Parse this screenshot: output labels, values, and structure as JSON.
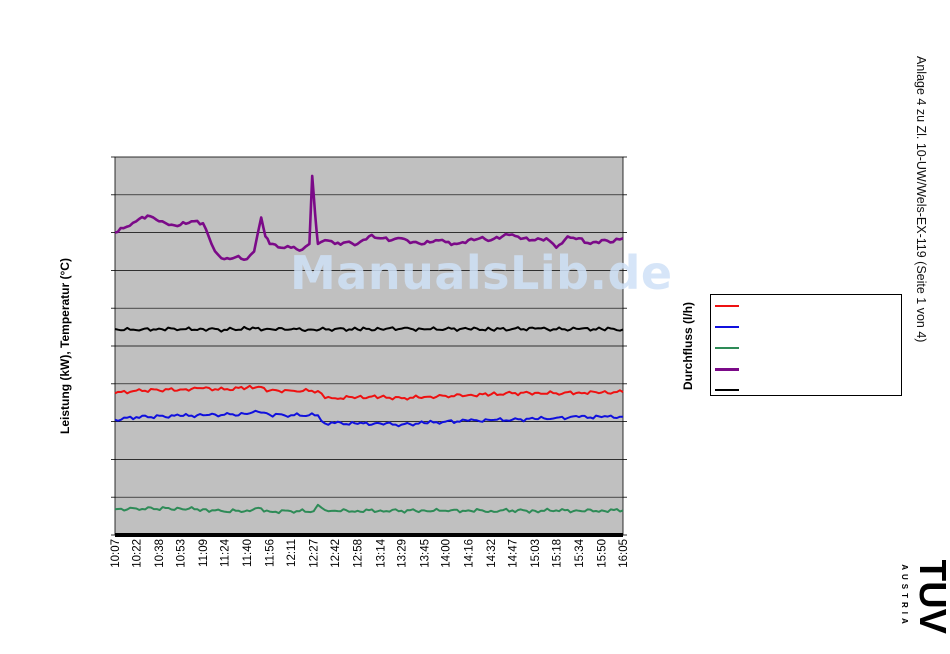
{
  "document": {
    "side_caption": "Anlage 4 zu Zl. 10-UW/Wels-EX-119 (Seite 1 von 4)",
    "watermark": "ManualsLib.de",
    "logo_text": "TÜV",
    "logo_subtext": "AUSTRIA"
  },
  "chart_data": {
    "type": "line",
    "title": "",
    "ylabel_left": "Leistung (kW), Temperatur (°C)",
    "ylabel_right": "Durchfluss (l/h)",
    "xlabel": "",
    "x_ticks": [
      "10:07",
      "10:22",
      "10:38",
      "10:53",
      "11:09",
      "11:24",
      "11:40",
      "11:56",
      "12:11",
      "12:27",
      "12:42",
      "12:58",
      "13:14",
      "13:29",
      "13:45",
      "14:00",
      "14:16",
      "14:32",
      "14:47",
      "15:03",
      "15:18",
      "15:34",
      "15:50",
      "16:05"
    ],
    "ylim": [
      0,
      10
    ],
    "grid": true,
    "y_tick_count": 10,
    "legend_placement": "right",
    "background": "#c0c0c0",
    "series": [
      {
        "color": "#ee1111",
        "x": [
          "10:07",
          "10:22",
          "10:53",
          "11:09",
          "11:24",
          "11:40",
          "11:48",
          "11:56",
          "12:11",
          "12:30",
          "12:35",
          "12:42",
          "12:58",
          "13:14",
          "13:29",
          "13:45",
          "14:00",
          "14:16",
          "14:32",
          "14:47",
          "15:03",
          "15:18",
          "15:34",
          "15:50",
          "16:05"
        ],
        "values": [
          3.75,
          3.82,
          3.85,
          3.88,
          3.85,
          3.9,
          3.92,
          3.82,
          3.82,
          3.81,
          3.62,
          3.62,
          3.65,
          3.65,
          3.62,
          3.65,
          3.68,
          3.7,
          3.72,
          3.75,
          3.76,
          3.75,
          3.77,
          3.77,
          3.78
        ]
      },
      {
        "color": "#1010dd",
        "x": [
          "10:07",
          "10:22",
          "10:53",
          "11:09",
          "11:24",
          "11:40",
          "11:48",
          "11:56",
          "12:11",
          "12:30",
          "12:35",
          "12:42",
          "12:58",
          "13:14",
          "13:29",
          "13:45",
          "14:00",
          "14:16",
          "14:32",
          "14:47",
          "15:03",
          "15:18",
          "15:34",
          "15:50",
          "16:05"
        ],
        "values": [
          3.05,
          3.12,
          3.15,
          3.17,
          3.18,
          3.2,
          3.26,
          3.18,
          3.17,
          3.17,
          2.95,
          2.96,
          2.94,
          2.95,
          2.92,
          2.96,
          3.0,
          3.02,
          3.04,
          3.05,
          3.07,
          3.1,
          3.12,
          3.12,
          3.13
        ]
      },
      {
        "color": "#2e8b57",
        "x": [
          "10:07",
          "10:22",
          "10:53",
          "11:09",
          "11:24",
          "11:40",
          "11:48",
          "11:56",
          "12:11",
          "12:27",
          "12:30",
          "12:35",
          "12:42",
          "12:58",
          "13:14",
          "13:29",
          "13:45",
          "14:00",
          "14:16",
          "14:32",
          "14:47",
          "15:03",
          "15:18",
          "15:34",
          "15:50",
          "16:05"
        ],
        "values": [
          0.68,
          0.7,
          0.7,
          0.68,
          0.62,
          0.65,
          0.72,
          0.62,
          0.63,
          0.63,
          0.8,
          0.66,
          0.64,
          0.64,
          0.65,
          0.64,
          0.65,
          0.64,
          0.65,
          0.64,
          0.65,
          0.64,
          0.65,
          0.64,
          0.65,
          0.65
        ]
      },
      {
        "color": "#7b0a88",
        "x": [
          "10:07",
          "10:15",
          "10:22",
          "10:30",
          "10:38",
          "10:45",
          "10:53",
          "11:01",
          "11:09",
          "11:15",
          "11:20",
          "11:24",
          "11:32",
          "11:40",
          "11:45",
          "11:50",
          "11:53",
          "11:56",
          "12:04",
          "12:11",
          "12:19",
          "12:24",
          "12:26",
          "12:28",
          "12:30",
          "12:35",
          "12:42",
          "12:50",
          "12:58",
          "13:06",
          "13:14",
          "13:22",
          "13:29",
          "13:37",
          "13:45",
          "13:53",
          "14:00",
          "14:08",
          "14:16",
          "14:24",
          "14:32",
          "14:40",
          "14:47",
          "14:55",
          "15:03",
          "15:11",
          "15:18",
          "15:26",
          "15:34",
          "15:42",
          "15:50",
          "15:58",
          "16:05"
        ],
        "values": [
          8.0,
          8.15,
          8.3,
          8.45,
          8.3,
          8.2,
          8.2,
          8.3,
          8.25,
          7.7,
          7.4,
          7.3,
          7.35,
          7.3,
          7.5,
          8.4,
          7.9,
          7.7,
          7.6,
          7.6,
          7.55,
          7.7,
          9.5,
          8.5,
          7.7,
          7.8,
          7.7,
          7.75,
          7.7,
          7.9,
          7.85,
          7.8,
          7.85,
          7.75,
          7.7,
          7.8,
          7.75,
          7.7,
          7.8,
          7.85,
          7.8,
          7.9,
          7.95,
          7.85,
          7.8,
          7.85,
          7.6,
          7.9,
          7.85,
          7.7,
          7.8,
          7.75,
          7.85
        ]
      },
      {
        "color": "#000000",
        "x": [
          "10:07",
          "10:22",
          "10:38",
          "10:53",
          "11:09",
          "11:24",
          "11:40",
          "11:56",
          "12:11",
          "12:27",
          "12:42",
          "12:58",
          "13:14",
          "13:29",
          "13:45",
          "14:00",
          "14:16",
          "14:32",
          "14:47",
          "15:03",
          "15:18",
          "15:34",
          "15:50",
          "16:05"
        ],
        "values": [
          5.45,
          5.42,
          5.46,
          5.44,
          5.45,
          5.43,
          5.46,
          5.45,
          5.44,
          5.43,
          5.45,
          5.44,
          5.45,
          5.46,
          5.44,
          5.45,
          5.45,
          5.44,
          5.45,
          5.46,
          5.44,
          5.45,
          5.45,
          5.44
        ]
      }
    ]
  }
}
